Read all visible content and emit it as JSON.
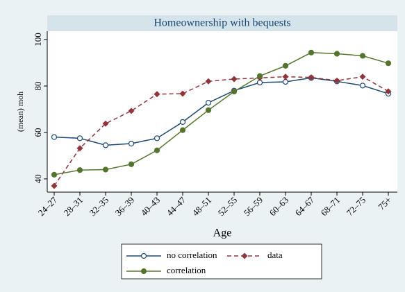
{
  "chart_data": {
    "type": "line",
    "title": "Homeownership with bequests",
    "x_label": "Age",
    "y_label": "(mean) moh",
    "categories": [
      "24–27",
      "28–31",
      "32–35",
      "36–39",
      "40–43",
      "44–47",
      "48–51",
      "52–55",
      "56–59",
      "60–63",
      "64–67",
      "68–71",
      "72–75",
      "75+"
    ],
    "series": [
      {
        "name": "no correlation",
        "color": "#1a476f",
        "marker": "hollow-circle",
        "dash": false,
        "values": [
          58,
          57.5,
          54.5,
          55.2,
          57.5,
          64.5,
          72.8,
          78,
          81.5,
          81.8,
          83.5,
          82,
          80.2,
          76.7
        ]
      },
      {
        "name": "data",
        "color": "#90353b",
        "marker": "diamond",
        "dash": true,
        "values": [
          37,
          53.2,
          63.8,
          69.3,
          76.5,
          76.7,
          82,
          83,
          83.5,
          84,
          83.7,
          82.3,
          84,
          77.7
        ]
      },
      {
        "name": "correlation",
        "color": "#55752f",
        "marker": "circle",
        "dash": false,
        "values": [
          41.8,
          43.8,
          44,
          46.3,
          52.3,
          61,
          69.6,
          77.6,
          84.3,
          88.7,
          94.4,
          93.9,
          93,
          89.8
        ]
      }
    ],
    "ylim": [
      34.3,
      103.6
    ],
    "yticks": [
      40,
      60,
      80,
      100
    ],
    "grid": false
  }
}
